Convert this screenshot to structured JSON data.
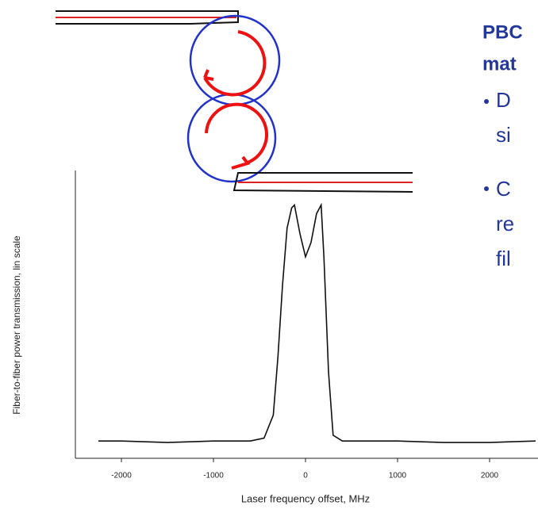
{
  "chart_data": {
    "type": "line",
    "x_label": "Laser frequency offset, MHz",
    "y_label": "Fiber-to-fiber power transmission, lin scale",
    "x": [
      -2250,
      -2000,
      -1500,
      -1000,
      -600,
      -450,
      -350,
      -300,
      -250,
      -200,
      -150,
      -120,
      -60,
      0,
      60,
      120,
      170,
      200,
      250,
      300,
      400,
      700,
      1000,
      1500,
      2000,
      2500
    ],
    "series": [
      {
        "color": "#111111",
        "values": [
          0.06,
          0.06,
          0.055,
          0.06,
          0.06,
          0.07,
          0.15,
          0.35,
          0.6,
          0.8,
          0.87,
          0.88,
          0.78,
          0.7,
          0.75,
          0.85,
          0.88,
          0.7,
          0.3,
          0.08,
          0.06,
          0.06,
          0.06,
          0.055,
          0.055,
          0.06
        ]
      }
    ],
    "xlim": [
      -2500,
      2500
    ],
    "ylim": [
      0,
      1
    ],
    "xticks": [
      {
        "value": -2000,
        "label": "-2000"
      },
      {
        "value": -1000,
        "label": "-1000"
      },
      0,
      1000,
      2000
    ]
  },
  "slide_text": {
    "heading": [
      "PBC",
      "mat"
    ],
    "bullets": [
      [
        "D",
        "si"
      ],
      [
        "C",
        "re",
        "fil"
      ]
    ]
  }
}
